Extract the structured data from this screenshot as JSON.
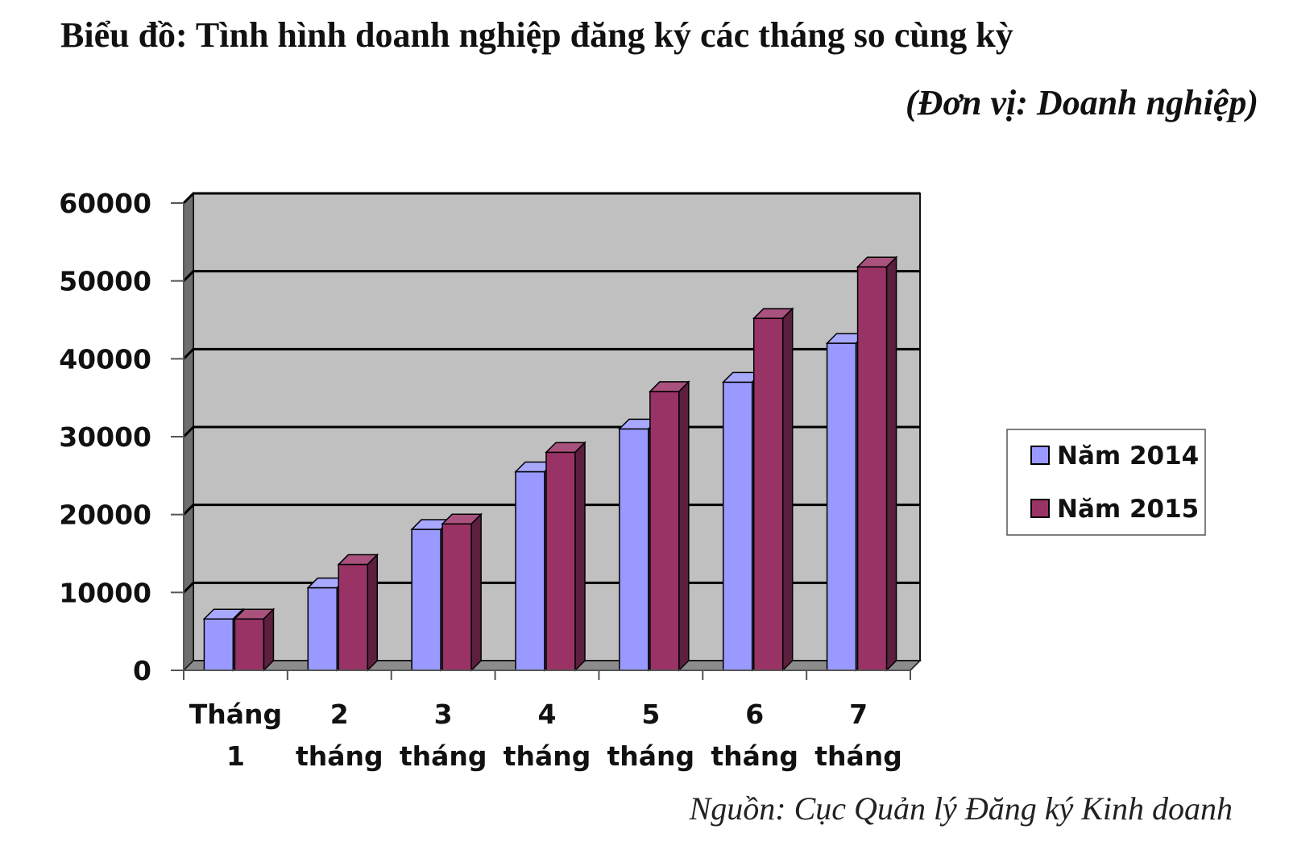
{
  "title": "Biểu đồ: Tình hình doanh nghiệp đăng ký các tháng so cùng kỳ",
  "unit_note": "(Đơn vị: Doanh nghiệp)",
  "source": "Nguồn: Cục Quản lý Đăng ký Kinh doanh",
  "chart_data": {
    "type": "bar",
    "categories": [
      [
        "Tháng",
        "1"
      ],
      [
        "2",
        "tháng"
      ],
      [
        "3",
        "tháng"
      ],
      [
        "4",
        "tháng"
      ],
      [
        "5",
        "tháng"
      ],
      [
        "6",
        "tháng"
      ],
      [
        "7",
        "tháng"
      ]
    ],
    "series": [
      {
        "name": "Năm 2014",
        "color": "#9999ff",
        "values": [
          6600,
          10600,
          18100,
          25500,
          31000,
          37000,
          42000
        ]
      },
      {
        "name": "Năm 2015",
        "color": "#993366",
        "values": [
          6600,
          13600,
          18800,
          28000,
          35800,
          45200,
          51800
        ]
      }
    ],
    "ylim": [
      0,
      60000
    ],
    "yticks": [
      "0",
      "10000",
      "20000",
      "30000",
      "40000",
      "50000",
      "60000"
    ],
    "grid": true,
    "plot_background": "#c0c0c0",
    "legend_position": "right"
  }
}
